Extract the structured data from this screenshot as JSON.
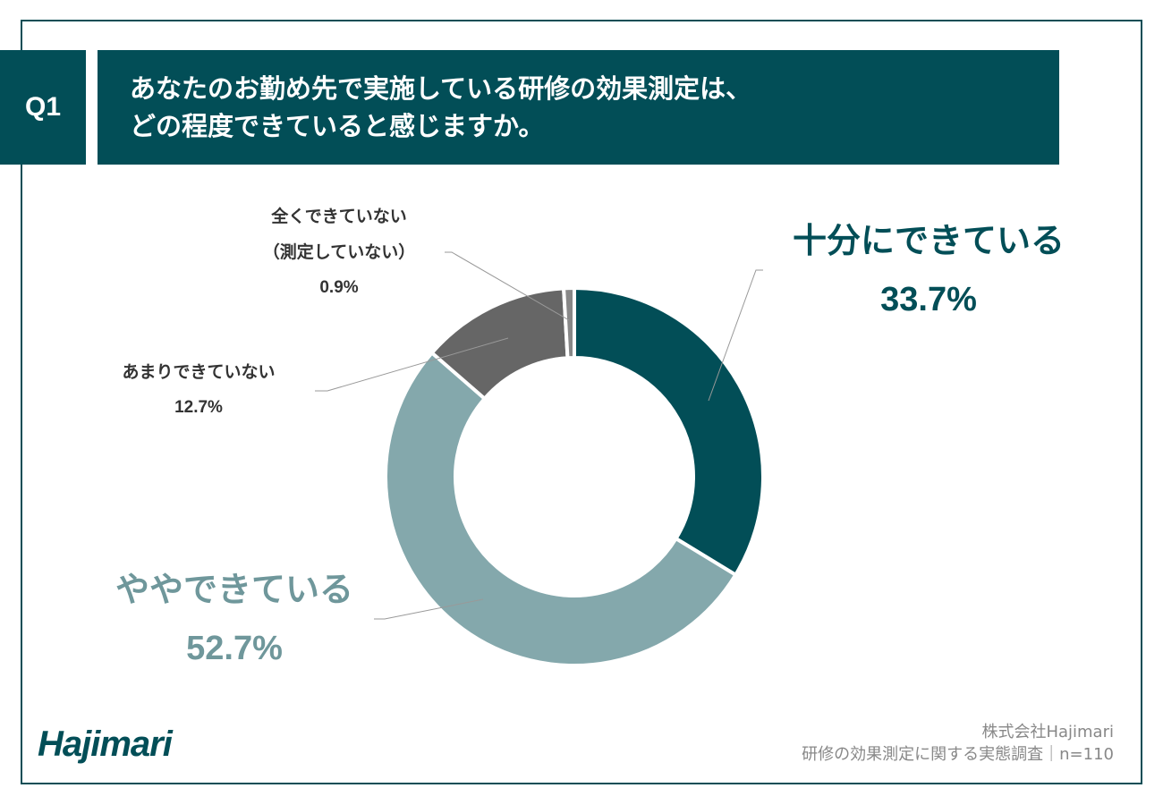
{
  "question": {
    "number": "Q1",
    "title_line1": "あなたのお勤め先で実施している研修の効果測定は、",
    "title_line2": "どの程度できていると感じますか。"
  },
  "chart_data": {
    "type": "pie",
    "subtype": "donut",
    "slices": [
      {
        "label": "十分にできている",
        "value": 33.7,
        "display": "33.7%",
        "color": "#024e57"
      },
      {
        "label": "ややできている",
        "value": 52.7,
        "display": "52.7%",
        "color": "#84a8ac"
      },
      {
        "label": "あまりできていない",
        "value": 12.7,
        "display": "12.7%",
        "color": "#666666"
      },
      {
        "label": "全くできていない（測定していない）",
        "value": 0.9,
        "display": "0.9%",
        "color": "#888888"
      }
    ]
  },
  "labels": {
    "juubun_name": "十分にできている",
    "juubun_value": "33.7%",
    "yaya_name": "ややできている",
    "yaya_value": "52.7%",
    "amari_name": "あまりできていない",
    "amari_value": "12.7%",
    "mattaku_name_line1": "全くできていない",
    "mattaku_name_line2": "（測定していない）",
    "mattaku_value": "0.9%"
  },
  "footer": {
    "logo": "Hajimari",
    "company": "株式会社Hajimari",
    "survey": "研修の効果測定に関する実態調査｜n=110"
  },
  "colors": {
    "brand": "#024e57",
    "light_teal": "#84a8ac",
    "dark_gray": "#666666"
  }
}
